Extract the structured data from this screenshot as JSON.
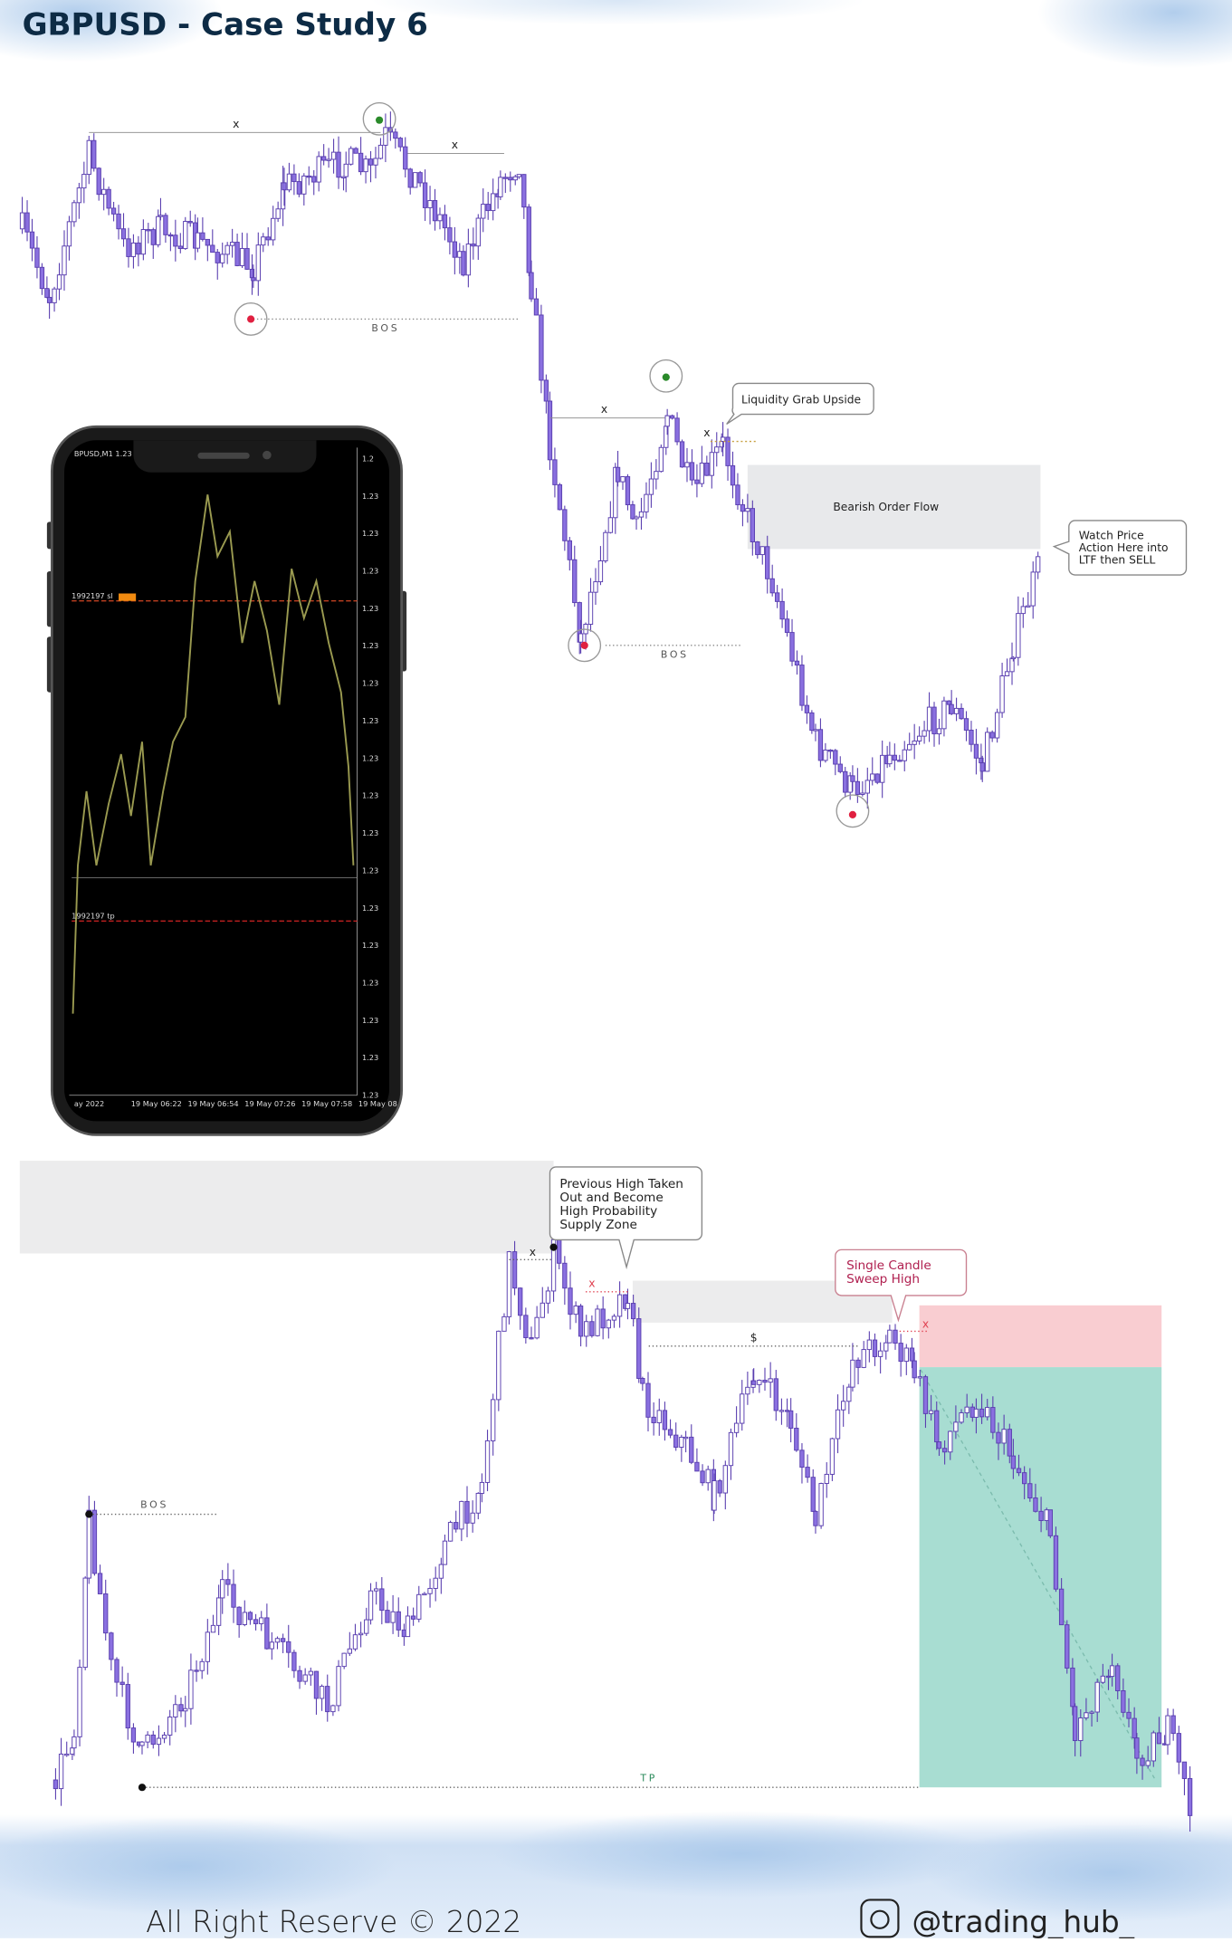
{
  "header": {
    "title": "GBPUSD - Case Study 6"
  },
  "chart1": {
    "range_marks": [
      "x",
      "x",
      "x",
      "x"
    ],
    "bos_labels": [
      "BOS",
      "BOS"
    ],
    "callout_liquidity": "Liquidity Grab Upside",
    "zone_label": "Bearish Order Flow",
    "callout_watch": [
      "Watch Price",
      "Action Here into",
      "LTF  then SELL"
    ]
  },
  "phone": {
    "symbol": "BPUSD,M1  1.23",
    "order_labels": [
      "1992197 sl",
      "1992197 tp"
    ],
    "price_labels": [
      "1.2",
      "1.23",
      "1.23",
      "1.23",
      "1.23",
      "1.23",
      "1.23",
      "1.23",
      "1.23",
      "1.23",
      "1.23",
      "1.23",
      "1.23",
      "1.23",
      "1.23",
      "1.23",
      "1.23",
      "1.23"
    ],
    "time_labels": [
      "ay 2022",
      "19 May 06:22",
      "19 May 06:54",
      "19 May 07:26",
      "19 May 07:58",
      "19 May 08"
    ]
  },
  "chart2": {
    "callout_previous": [
      "Previous High Taken",
      "Out and Become",
      "High Probability",
      "Supply Zone"
    ],
    "callout_sweep": [
      "Single Candle",
      "Sweep High"
    ],
    "marks": [
      "x",
      "x",
      "x"
    ],
    "liquidity_mark": "$",
    "bos_label": "BOS",
    "tp_label": "TP"
  },
  "footer": {
    "copyright": "All Right Reserve  © 2022",
    "handle": "@trading_hub_"
  }
}
